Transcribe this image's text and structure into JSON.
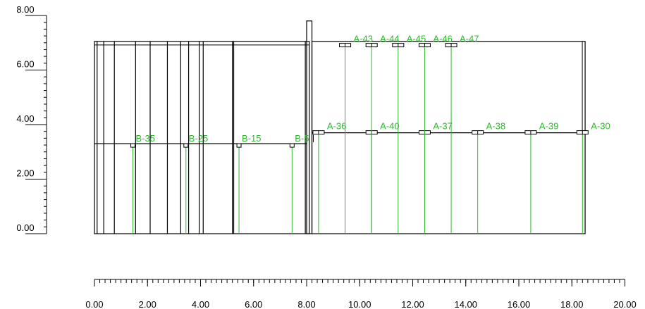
{
  "colors": {
    "structure": "#000000",
    "label": "#2db82d"
  },
  "left_axis": {
    "ticks": [
      {
        "value": 0,
        "label": "0.00"
      },
      {
        "value": 2,
        "label": "2.00"
      },
      {
        "value": 4,
        "label": "4.00"
      },
      {
        "value": 6,
        "label": "6.00"
      },
      {
        "value": 8,
        "label": "8.00"
      }
    ],
    "range": [
      0,
      8
    ],
    "minor_step": 0.25
  },
  "bottom_axis": {
    "ticks": [
      {
        "value": 0,
        "label": "0.00"
      },
      {
        "value": 2,
        "label": "2.00"
      },
      {
        "value": 4,
        "label": "4.00"
      },
      {
        "value": 6,
        "label": "6.00"
      },
      {
        "value": 8,
        "label": "8.00"
      },
      {
        "value": 10,
        "label": "10.00"
      },
      {
        "value": 12,
        "label": "12.00"
      },
      {
        "value": 14,
        "label": "14.00"
      },
      {
        "value": 16,
        "label": "16.00"
      },
      {
        "value": 18,
        "label": "18.00"
      },
      {
        "value": 20,
        "label": "20.00"
      }
    ],
    "range": [
      0,
      20
    ],
    "minor_step": 0.2
  },
  "structure": {
    "left_block": {
      "x0": 0.0,
      "x1": 8.1,
      "y0": 0.0,
      "y1": 7.05,
      "beam_y": 3.3
    },
    "left_block_posts": [
      0.1,
      0.35,
      0.75,
      1.55,
      2.1,
      2.75,
      3.25,
      3.55,
      3.95,
      4.1,
      5.2,
      5.25,
      7.95
    ],
    "right_block": {
      "x0": 8.2,
      "x1": 18.5,
      "y0": 0.0,
      "y1": 7.05,
      "beam_y": 3.7
    },
    "column": {
      "x0": 8.0,
      "x1": 8.2,
      "y0": 0.0,
      "y1": 7.8
    }
  },
  "markers": [
    {
      "label": "B-35",
      "x": 1.45,
      "y": 3.3
    },
    {
      "label": "B-25",
      "x": 3.45,
      "y": 3.3
    },
    {
      "label": "B-15",
      "x": 5.45,
      "y": 3.3
    },
    {
      "label": "B-5",
      "x": 7.45,
      "y": 3.3
    },
    {
      "label": "A-36",
      "x": 8.45,
      "y": 3.7
    },
    {
      "label": "A-40",
      "x": 10.45,
      "y": 3.7
    },
    {
      "label": "A-37",
      "x": 12.45,
      "y": 3.7
    },
    {
      "label": "A-38",
      "x": 14.45,
      "y": 3.7
    },
    {
      "label": "A-39",
      "x": 16.45,
      "y": 3.7
    },
    {
      "label": "A-30",
      "x": 18.4,
      "y": 3.7
    },
    {
      "label": "A-43",
      "x": 9.45,
      "y": 6.9
    },
    {
      "label": "A-44",
      "x": 10.45,
      "y": 6.9
    },
    {
      "label": "A-45",
      "x": 11.45,
      "y": 6.9
    },
    {
      "label": "A-46",
      "x": 12.45,
      "y": 6.9
    },
    {
      "label": "A-47",
      "x": 13.45,
      "y": 6.9
    }
  ]
}
